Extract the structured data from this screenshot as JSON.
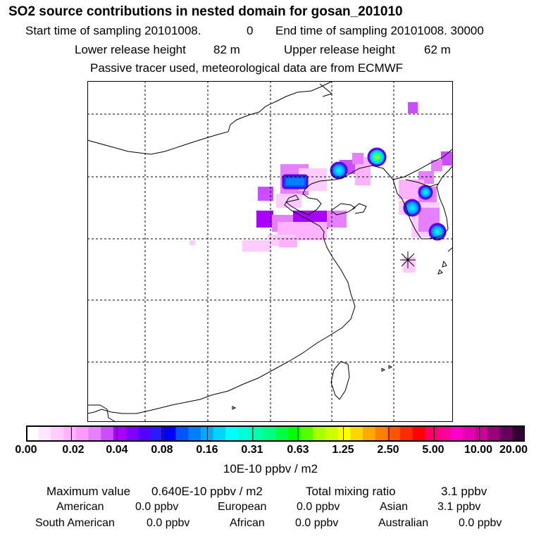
{
  "header": {
    "title": "SO2 source contributions in nested domain for gosan_201010",
    "start_label": "Start time of sampling 20101008.",
    "start_value": "0",
    "end_label": "End time of sampling 20101008. 30000",
    "lower_label": "Lower release height",
    "lower_value": "82 m",
    "upper_label": "Upper release height",
    "upper_value": "62 m",
    "note": "Passive tracer used, meteorological data are from ECMWF"
  },
  "colorbar": {
    "colors": [
      "#ffffff",
      "#ffe6ff",
      "#ffccff",
      "#ffb3ff",
      "#ff99ff",
      "#e680ff",
      "#cc4dff",
      "#aa00ff",
      "#8000ff",
      "#5500ff",
      "#2a1aff",
      "#0000ff",
      "#0055ff",
      "#0080ff",
      "#00aaff",
      "#00d5ff",
      "#00ffff",
      "#00ffd5",
      "#00ffaa",
      "#00ff80",
      "#00ff40",
      "#00ff00",
      "#55ff00",
      "#aaff00",
      "#ccff00",
      "#ffff00",
      "#ffd500",
      "#ffaa00",
      "#ff8000",
      "#ff5500",
      "#ff2a00",
      "#ff0000",
      "#ff0066",
      "#ff0099",
      "#ff00cc",
      "#e600b3",
      "#cc0099",
      "#99007a",
      "#66005c",
      "#330033"
    ],
    "ticks": [
      "0.00",
      "0.02",
      "0.04",
      "0.08",
      "0.16",
      "0.31",
      "0.63",
      "1.25",
      "2.50",
      "5.00",
      "10.00",
      "20.00"
    ],
    "unit": "10E-10 ppbv / m2"
  },
  "footer": {
    "max_label": "Maximum value",
    "max_value": "0.640E-10 ppbv / m2",
    "total_label": "Total mixing ratio",
    "total_value": "3.1 ppbv",
    "regions": [
      {
        "name": "American",
        "value": "0.0 ppbv"
      },
      {
        "name": "European",
        "value": "0.0 ppbv"
      },
      {
        "name": "Asian",
        "value": "3.1 ppbv"
      },
      {
        "name": "South American",
        "value": "0.0 ppbv"
      },
      {
        "name": "African",
        "value": "0.0 ppbv"
      },
      {
        "name": "Australian",
        "value": "0.0 ppbv"
      }
    ]
  }
}
